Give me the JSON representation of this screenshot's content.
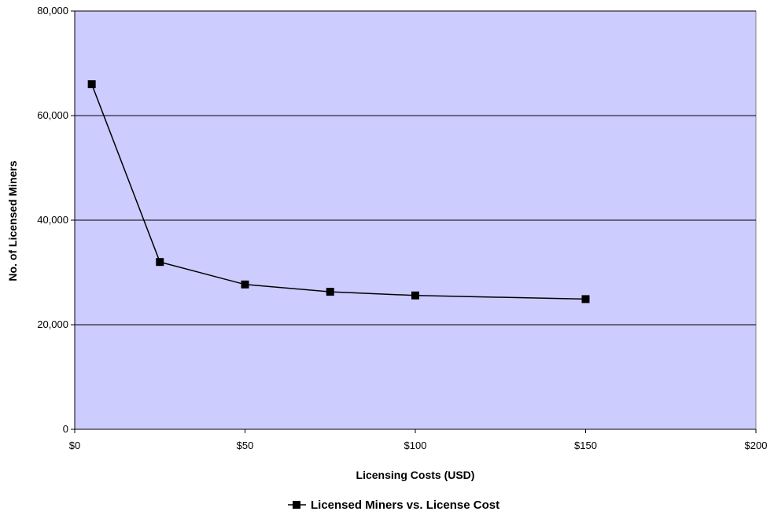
{
  "chart_data": {
    "type": "line",
    "title": "",
    "xlabel": "Licensing Costs (USD)",
    "ylabel": "No. of Licensed Miners",
    "xlim": [
      0,
      200
    ],
    "ylim": [
      0,
      80000
    ],
    "x_ticks": [
      0,
      50,
      100,
      150,
      200
    ],
    "x_tick_labels": [
      "$0",
      "$50",
      "$100",
      "$150",
      "$200"
    ],
    "y_ticks": [
      0,
      20000,
      40000,
      60000,
      80000
    ],
    "y_tick_labels": [
      "0",
      "20,000",
      "40,000",
      "60,000",
      "80,000"
    ],
    "grid": "horizontal",
    "legend_position": "bottom-center",
    "colors": {
      "plot_background": "#ccccff",
      "line": "#000000",
      "marker": "#000000"
    },
    "series": [
      {
        "name": "Licensed Miners vs. License Cost",
        "marker": "square",
        "x": [
          5,
          25,
          50,
          75,
          100,
          150
        ],
        "y": [
          66000,
          32000,
          27700,
          26300,
          25600,
          24900
        ]
      }
    ]
  }
}
